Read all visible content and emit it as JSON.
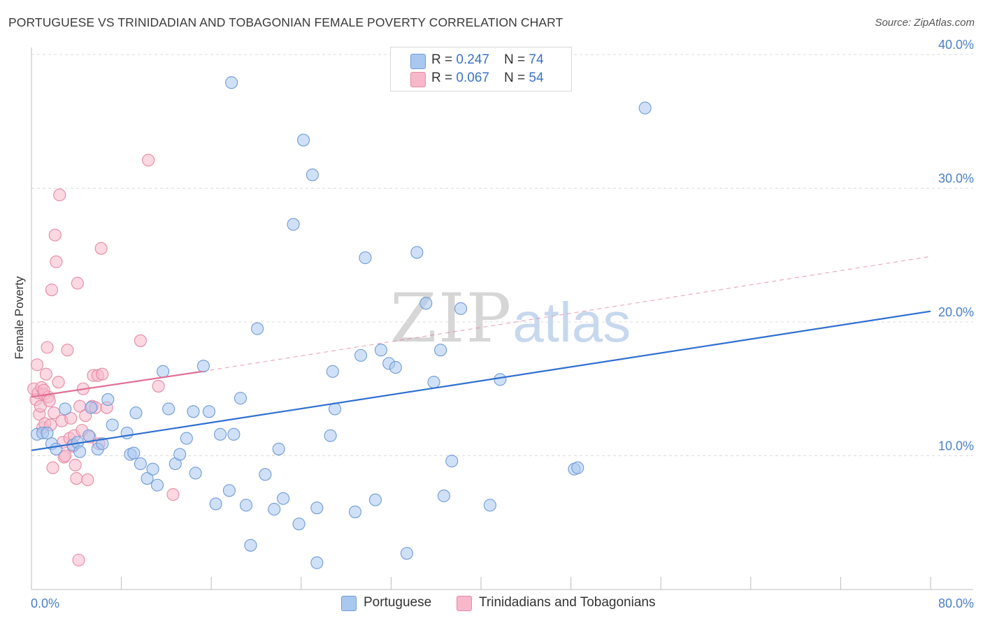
{
  "header": {
    "title": "PORTUGUESE VS TRINIDADIAN AND TOBAGONIAN FEMALE POVERTY CORRELATION CHART",
    "source": "Source: ZipAtlas.com"
  },
  "watermark": {
    "zip": "ZIP",
    "atlas": "atlas"
  },
  "legend": {
    "rows": [
      {
        "r_label": "R = ",
        "r_value": "0.247",
        "n_label": "N = ",
        "n_value": "74",
        "color": "#a9c8f0"
      },
      {
        "r_label": "R = ",
        "r_value": "0.067",
        "n_label": "N = ",
        "n_value": "54",
        "color": "#f7b8cb"
      }
    ]
  },
  "bottom_legend": {
    "portuguese": "Portuguese",
    "trinidadian": "Trinidadians and Tobagonians"
  },
  "colors": {
    "blue_fill": "#a9c8f0",
    "blue_stroke": "#6f9bd6",
    "blue_line": "#2f6fcf",
    "pink_fill": "#f7b8cb",
    "pink_stroke": "#e58aa6",
    "pink_line": "#e07095",
    "grid": "#dcdcdc",
    "tick_text": "#4a7fc9"
  },
  "chart_data": {
    "type": "scatter",
    "title": "PORTUGUESE VS TRINIDADIAN AND TOBAGONIAN FEMALE POVERTY CORRELATION CHART",
    "xlabel": "",
    "ylabel": "Female Poverty",
    "xlim": [
      0,
      80
    ],
    "ylim": [
      0,
      40
    ],
    "x_tick_labels": [
      "0.0%",
      "80.0%"
    ],
    "y_ticks": [
      10,
      20,
      30,
      40
    ],
    "y_tick_labels": [
      "10.0%",
      "20.0%",
      "30.0%",
      "40.0%"
    ],
    "x_minor_ticks": [
      0,
      8,
      16,
      24,
      32,
      40,
      48,
      56,
      64,
      72,
      80
    ],
    "series": [
      {
        "name": "Portuguese",
        "color": "#a9c8f0",
        "R": 0.247,
        "N": 74,
        "trend": {
          "x0": 0,
          "y0": 10.4,
          "x1": 80,
          "y1": 20.8,
          "style": "solid"
        },
        "points": [
          [
            0.5,
            11.6
          ],
          [
            1.0,
            11.7
          ],
          [
            1.8,
            10.9
          ],
          [
            2.2,
            10.5
          ],
          [
            3.0,
            13.5
          ],
          [
            3.7,
            10.8
          ],
          [
            4.1,
            11.0
          ],
          [
            4.3,
            10.3
          ],
          [
            5.1,
            11.5
          ],
          [
            5.3,
            13.6
          ],
          [
            5.9,
            10.5
          ],
          [
            6.3,
            10.9
          ],
          [
            6.8,
            14.2
          ],
          [
            7.2,
            12.3
          ],
          [
            8.8,
            10.1
          ],
          [
            9.1,
            10.2
          ],
          [
            8.5,
            11.7
          ],
          [
            9.3,
            13.2
          ],
          [
            9.7,
            9.4
          ],
          [
            10.3,
            8.3
          ],
          [
            10.8,
            9.0
          ],
          [
            11.2,
            7.8
          ],
          [
            11.7,
            16.3
          ],
          [
            12.2,
            13.5
          ],
          [
            12.8,
            9.4
          ],
          [
            13.2,
            10.1
          ],
          [
            13.8,
            11.3
          ],
          [
            14.4,
            13.3
          ],
          [
            14.6,
            8.7
          ],
          [
            15.3,
            16.7
          ],
          [
            15.8,
            13.3
          ],
          [
            16.4,
            6.4
          ],
          [
            16.8,
            11.6
          ],
          [
            17.6,
            7.4
          ],
          [
            18.0,
            11.6
          ],
          [
            18.6,
            14.3
          ],
          [
            19.1,
            6.3
          ],
          [
            19.5,
            3.3
          ],
          [
            20.8,
            8.6
          ],
          [
            21.6,
            6.0
          ],
          [
            22.0,
            10.5
          ],
          [
            22.4,
            6.8
          ],
          [
            23.8,
            4.9
          ],
          [
            24.2,
            33.6
          ],
          [
            25.0,
            31.0
          ],
          [
            25.4,
            6.1
          ],
          [
            25.4,
            2.0
          ],
          [
            26.6,
            11.5
          ],
          [
            26.8,
            16.3
          ],
          [
            27.0,
            13.5
          ],
          [
            28.8,
            5.8
          ],
          [
            29.3,
            17.5
          ],
          [
            30.6,
            6.7
          ],
          [
            31.1,
            17.9
          ],
          [
            31.8,
            16.9
          ],
          [
            32.4,
            16.6
          ],
          [
            33.4,
            2.7
          ],
          [
            34.3,
            25.2
          ],
          [
            35.1,
            21.4
          ],
          [
            35.8,
            15.5
          ],
          [
            36.4,
            17.9
          ],
          [
            36.7,
            7.0
          ],
          [
            37.4,
            9.6
          ],
          [
            38.2,
            21.0
          ],
          [
            40.8,
            6.3
          ],
          [
            41.7,
            15.7
          ],
          [
            48.3,
            9.0
          ],
          [
            48.6,
            9.1
          ],
          [
            54.6,
            36.0
          ],
          [
            20.1,
            19.5
          ],
          [
            23.3,
            27.3
          ],
          [
            29.7,
            24.8
          ],
          [
            17.8,
            37.9
          ],
          [
            1.4,
            11.7
          ]
        ]
      },
      {
        "name": "Trinidadians and Tobagonians",
        "color": "#f7b8cb",
        "R": 0.067,
        "N": 54,
        "trend": {
          "x0": 0,
          "y0": 14.4,
          "x1": 15.2,
          "y1": 16.3,
          "style": "solid",
          "extended_to": {
            "x": 80,
            "y": 24.9
          },
          "extended_style": "dashed"
        },
        "points": [
          [
            0.2,
            15.0
          ],
          [
            0.4,
            14.2
          ],
          [
            0.5,
            16.8
          ],
          [
            0.6,
            14.7
          ],
          [
            0.7,
            13.1
          ],
          [
            0.8,
            13.7
          ],
          [
            0.9,
            15.1
          ],
          [
            1.0,
            12.1
          ],
          [
            1.1,
            14.6
          ],
          [
            1.2,
            12.4
          ],
          [
            1.3,
            16.1
          ],
          [
            1.4,
            18.1
          ],
          [
            1.5,
            14.4
          ],
          [
            1.6,
            14.1
          ],
          [
            1.7,
            12.3
          ],
          [
            1.8,
            22.4
          ],
          [
            1.9,
            9.1
          ],
          [
            2.0,
            13.2
          ],
          [
            2.1,
            26.5
          ],
          [
            2.2,
            24.5
          ],
          [
            2.4,
            15.5
          ],
          [
            2.5,
            29.5
          ],
          [
            2.7,
            12.6
          ],
          [
            2.8,
            11.0
          ],
          [
            2.9,
            9.9
          ],
          [
            3.0,
            10.0
          ],
          [
            3.2,
            17.9
          ],
          [
            3.4,
            11.3
          ],
          [
            3.5,
            12.8
          ],
          [
            3.7,
            10.7
          ],
          [
            3.8,
            11.5
          ],
          [
            3.9,
            9.3
          ],
          [
            4.0,
            8.3
          ],
          [
            4.1,
            22.9
          ],
          [
            4.2,
            2.2
          ],
          [
            4.3,
            13.7
          ],
          [
            4.5,
            11.9
          ],
          [
            4.6,
            15.0
          ],
          [
            4.8,
            13.0
          ],
          [
            5.0,
            8.2
          ],
          [
            5.2,
            11.4
          ],
          [
            5.4,
            13.7
          ],
          [
            5.5,
            16.0
          ],
          [
            5.7,
            13.6
          ],
          [
            5.9,
            16.0
          ],
          [
            6.0,
            10.9
          ],
          [
            6.2,
            25.5
          ],
          [
            6.3,
            16.1
          ],
          [
            6.7,
            13.6
          ],
          [
            9.7,
            18.6
          ],
          [
            10.4,
            32.1
          ],
          [
            11.3,
            15.2
          ],
          [
            12.6,
            7.1
          ],
          [
            1.1,
            14.9
          ]
        ]
      }
    ]
  }
}
